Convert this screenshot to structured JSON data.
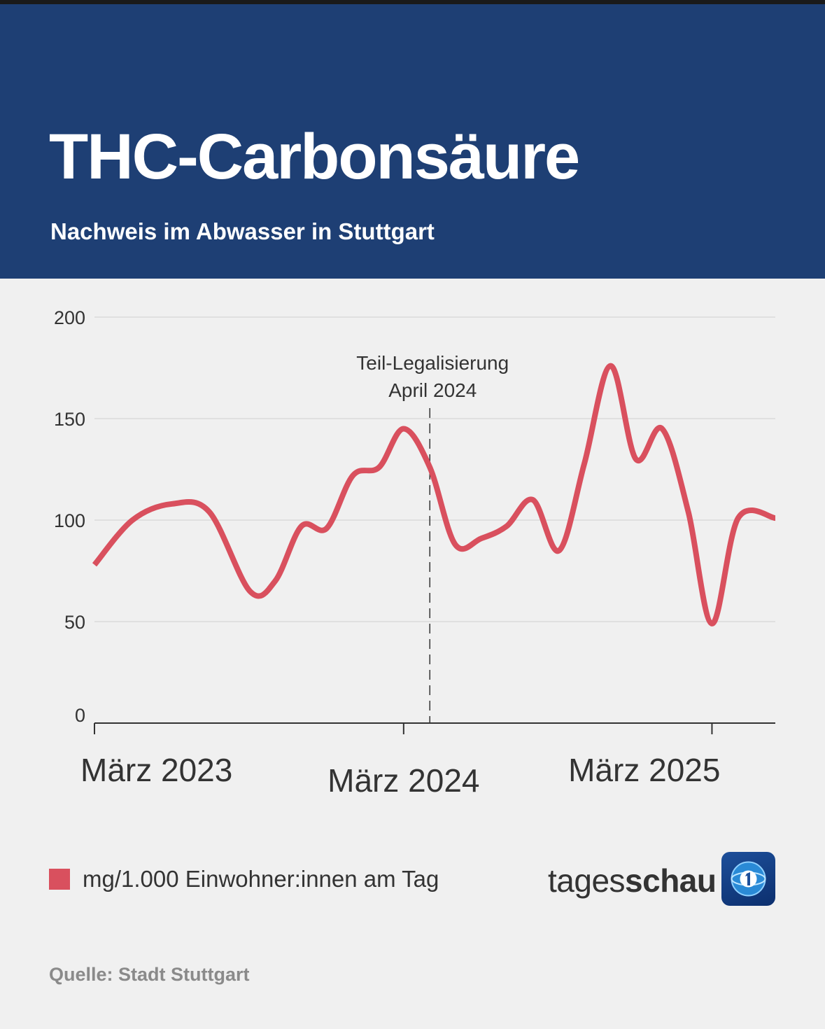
{
  "header": {
    "title": "THC-Carbonsäure",
    "subtitle": "Nachweis im Abwasser in Stuttgart"
  },
  "chart_data": {
    "type": "line",
    "title": "THC-Carbonsäure",
    "subtitle": "Nachweis im Abwasser in Stuttgart",
    "xlabel": "",
    "ylabel": "",
    "ylim": [
      0,
      200
    ],
    "yticks": [
      0,
      50,
      100,
      150,
      200
    ],
    "ytick_labels": [
      "0",
      "50",
      "100",
      "150",
      "200"
    ],
    "xlim": [
      "2023-03-01",
      "2025-05-15"
    ],
    "xticks": [
      "2023-03-01",
      "2024-03-01",
      "2025-03-01"
    ],
    "xtick_labels": [
      "März 2023",
      "März 2024",
      "März 2025"
    ],
    "grid": true,
    "line_color": "#d9505e",
    "series": [
      {
        "name": "mg/1.000 Einwohner:innen am Tag",
        "x": [
          "2023-03-01",
          "2023-04-15",
          "2023-06-01",
          "2023-07-15",
          "2023-09-01",
          "2023-10-01",
          "2023-11-01",
          "2023-12-01",
          "2024-01-01",
          "2024-02-01",
          "2024-03-01",
          "2024-04-01",
          "2024-05-01",
          "2024-06-01",
          "2024-07-01",
          "2024-08-01",
          "2024-09-01",
          "2024-10-01",
          "2024-11-01",
          "2024-12-01",
          "2025-01-01",
          "2025-02-01",
          "2025-03-01",
          "2025-04-01",
          "2025-05-15"
        ],
        "values": [
          78,
          100,
          108,
          104,
          65,
          70,
          97,
          96,
          122,
          126,
          145,
          126,
          88,
          91,
          97,
          110,
          85,
          128,
          176,
          130,
          145,
          104,
          49,
          101,
          101
        ]
      }
    ],
    "annotations": [
      {
        "x": "2024-04-01",
        "label_line1": "Teil-Legalisierung",
        "label_line2": "April 2024",
        "style": "dashed-vertical"
      }
    ],
    "legend": {
      "position": "bottom-left",
      "label": "mg/1.000 Einwohner:innen am Tag"
    }
  },
  "brand": {
    "light": "tages",
    "bold": "schau"
  },
  "source": "Quelle: Stadt Stuttgart"
}
